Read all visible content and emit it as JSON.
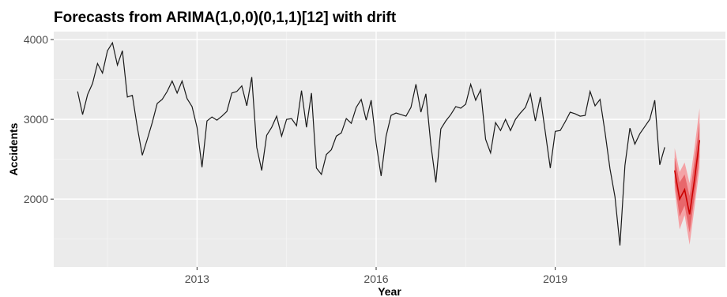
{
  "chart_data": {
    "type": "line",
    "title": "Forecasts from ARIMA(1,0,0)(0,1,1)[12] with drift",
    "xlabel": "Year",
    "ylabel": "Accidents",
    "xlim": [
      2010.6,
      2021.85
    ],
    "ylim": [
      1150,
      4100
    ],
    "x_ticks": [
      2013,
      2016,
      2019
    ],
    "x_tick_labels": [
      "2013",
      "2016",
      "2019"
    ],
    "y_ticks": [
      2000,
      3000,
      4000
    ],
    "y_tick_labels": [
      "2000",
      "3000",
      "4000"
    ],
    "grid": true,
    "legend": "none",
    "colors": {
      "panel": "#ebebeb",
      "grid_major": "#ffffff",
      "history": "#1a1a1a",
      "forecast": "#cc0000",
      "band_80": "#e8676b",
      "band_95": "#f4a3a6"
    },
    "history": {
      "start": [
        2011,
        1
      ],
      "frequency": 12,
      "values": [
        3350,
        3060,
        3310,
        3450,
        3700,
        3580,
        3860,
        3960,
        3680,
        3860,
        3280,
        3300,
        2900,
        2550,
        2750,
        2960,
        3200,
        3250,
        3350,
        3480,
        3330,
        3480,
        3260,
        3160,
        2900,
        2400,
        2980,
        3030,
        2990,
        3040,
        3100,
        3330,
        3350,
        3420,
        3170,
        3530,
        2650,
        2360,
        2800,
        2900,
        3040,
        2790,
        3000,
        3010,
        2920,
        3360,
        2900,
        3330,
        2390,
        2310,
        2560,
        2620,
        2790,
        2830,
        3010,
        2950,
        3150,
        3250,
        2990,
        3240,
        2700,
        2290,
        2790,
        3050,
        3080,
        3060,
        3040,
        3150,
        3440,
        3090,
        3320,
        2680,
        2210,
        2880,
        2980,
        3060,
        3160,
        3140,
        3190,
        3440,
        3240,
        3370,
        2750,
        2580,
        2960,
        2860,
        3000,
        2860,
        3000,
        3080,
        3150,
        3320,
        2980,
        3280,
        2840,
        2390,
        2850,
        2860,
        2970,
        3090,
        3070,
        3040,
        3050,
        3350,
        3170,
        3250,
        2840,
        2380,
        2030,
        1420,
        2420,
        2890,
        2690,
        2820,
        2910,
        3000,
        3240,
        2430,
        2650
      ]
    },
    "forecast": {
      "start": [
        2021,
        1
      ],
      "frequency": 12,
      "point": [
        2360,
        2000,
        2120,
        1810,
        2250,
        2740
      ],
      "lo80": [
        2210,
        1780,
        1920,
        1580,
        2030,
        2530
      ],
      "hi80": [
        2520,
        2210,
        2310,
        2040,
        2480,
        2960
      ],
      "lo95": [
        2120,
        1620,
        1800,
        1430,
        1900,
        2390
      ],
      "hi95": [
        2640,
        2340,
        2460,
        2200,
        2650,
        3140
      ]
    }
  }
}
